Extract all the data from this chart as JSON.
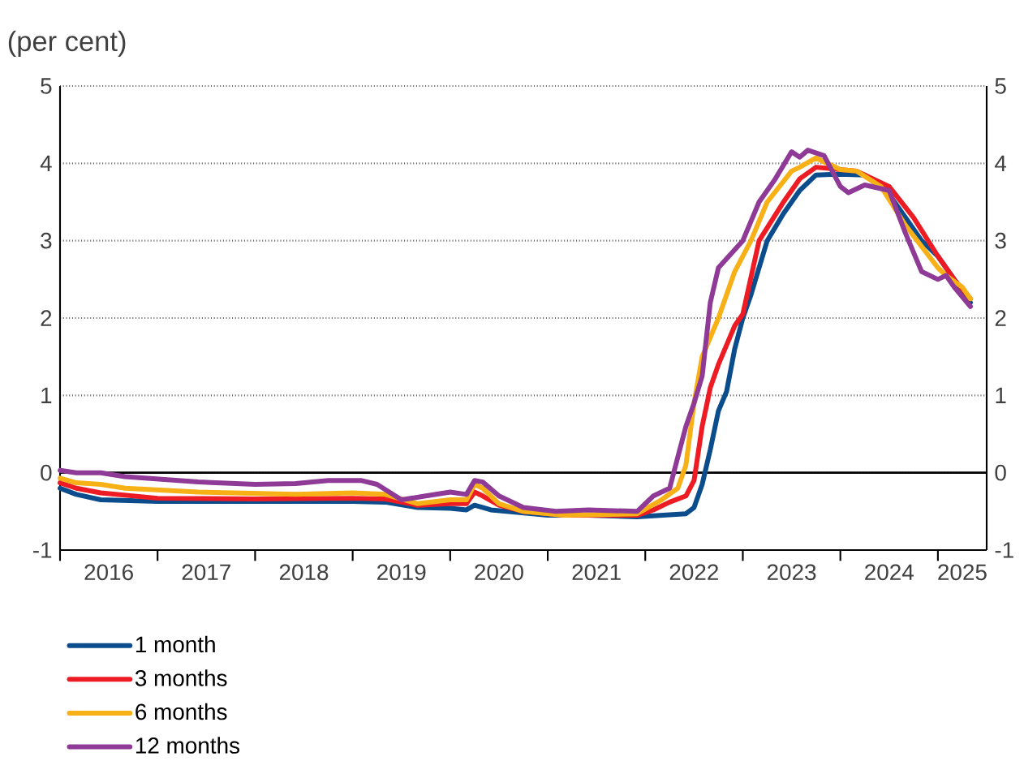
{
  "chart_data": {
    "type": "line",
    "ylabel": "(per cent)",
    "xlim": [
      "2016-01",
      "2025-07"
    ],
    "xticks": [
      {
        "value": "2016-01",
        "label": null
      },
      {
        "value": "2016-07",
        "label": "2016"
      },
      {
        "value": "2017-01",
        "label": null
      },
      {
        "value": "2017-07",
        "label": "2017"
      },
      {
        "value": "2018-01",
        "label": null
      },
      {
        "value": "2018-07",
        "label": "2018"
      },
      {
        "value": "2019-01",
        "label": null
      },
      {
        "value": "2019-07",
        "label": "2019"
      },
      {
        "value": "2020-01",
        "label": null
      },
      {
        "value": "2020-07",
        "label": "2020"
      },
      {
        "value": "2021-01",
        "label": null
      },
      {
        "value": "2021-07",
        "label": "2021"
      },
      {
        "value": "2022-01",
        "label": null
      },
      {
        "value": "2022-07",
        "label": "2022"
      },
      {
        "value": "2023-01",
        "label": null
      },
      {
        "value": "2023-07",
        "label": "2023"
      },
      {
        "value": "2024-01",
        "label": null
      },
      {
        "value": "2024-07",
        "label": "2024"
      },
      {
        "value": "2025-01",
        "label": null
      },
      {
        "value": "2025-04",
        "label": "2025"
      }
    ],
    "ylim": [
      -1,
      5
    ],
    "yticks": [
      -1,
      0,
      1,
      2,
      3,
      4,
      5
    ],
    "y2lim": [
      -1,
      5
    ],
    "y2ticks": [
      -1,
      0,
      1,
      2,
      3,
      4,
      5
    ],
    "grid": "y",
    "legend": "bottom left",
    "marker": "none",
    "line_style": "solid",
    "ref_lines": [
      {
        "axis": "y",
        "value": 0,
        "color": "#000000"
      }
    ],
    "series": [
      {
        "name": "1 month",
        "color": "#0b4c8c",
        "x": [
          "2016-01",
          "2016-03",
          "2016-06",
          "2017-01",
          "2018-01",
          "2019-01",
          "2019-05",
          "2019-09",
          "2020-01",
          "2020-03",
          "2020-04",
          "2020-06",
          "2020-09",
          "2021-01",
          "2021-06",
          "2021-12",
          "2022-03",
          "2022-06",
          "2022-07",
          "2022-08",
          "2022-09",
          "2022-10",
          "2022-11",
          "2022-12",
          "2023-01",
          "2023-02",
          "2023-04",
          "2023-06",
          "2023-08",
          "2023-10",
          "2024-01",
          "2024-04",
          "2024-07",
          "2024-09",
          "2024-11",
          "2025-01",
          "2025-03",
          "2025-05"
        ],
        "values": [
          -0.2,
          -0.28,
          -0.35,
          -0.37,
          -0.37,
          -0.37,
          -0.38,
          -0.45,
          -0.46,
          -0.48,
          -0.42,
          -0.48,
          -0.51,
          -0.55,
          -0.55,
          -0.57,
          -0.55,
          -0.53,
          -0.45,
          -0.15,
          0.3,
          0.8,
          1.05,
          1.6,
          2.0,
          2.3,
          3.0,
          3.35,
          3.65,
          3.85,
          3.86,
          3.85,
          3.6,
          3.3,
          3.0,
          2.8,
          2.5,
          2.2
        ]
      },
      {
        "name": "3 months",
        "color": "#ed1c24",
        "x": [
          "2016-01",
          "2016-03",
          "2016-06",
          "2017-01",
          "2018-01",
          "2019-01",
          "2019-05",
          "2019-09",
          "2020-01",
          "2020-03",
          "2020-04",
          "2020-05",
          "2020-07",
          "2020-10",
          "2021-03",
          "2021-12",
          "2022-02",
          "2022-04",
          "2022-06",
          "2022-07",
          "2022-08",
          "2022-09",
          "2022-10",
          "2022-12",
          "2023-01",
          "2023-03",
          "2023-06",
          "2023-08",
          "2023-10",
          "2024-01",
          "2024-03",
          "2024-07",
          "2024-10",
          "2025-01",
          "2025-03",
          "2025-05"
        ],
        "values": [
          -0.13,
          -0.2,
          -0.26,
          -0.33,
          -0.34,
          -0.33,
          -0.34,
          -0.42,
          -0.4,
          -0.4,
          -0.25,
          -0.3,
          -0.42,
          -0.5,
          -0.55,
          -0.55,
          -0.48,
          -0.38,
          -0.3,
          -0.1,
          0.6,
          1.1,
          1.4,
          1.9,
          2.05,
          3.0,
          3.5,
          3.8,
          3.95,
          3.92,
          3.9,
          3.7,
          3.3,
          2.8,
          2.5,
          2.25
        ]
      },
      {
        "name": "6 months",
        "color": "#f7b116",
        "x": [
          "2016-01",
          "2016-03",
          "2016-06",
          "2016-09",
          "2017-06",
          "2018-06",
          "2019-01",
          "2019-05",
          "2019-09",
          "2020-01",
          "2020-03",
          "2020-04",
          "2020-05",
          "2020-07",
          "2020-10",
          "2021-03",
          "2021-12",
          "2022-03",
          "2022-05",
          "2022-06",
          "2022-07",
          "2022-08",
          "2022-10",
          "2022-12",
          "2023-02",
          "2023-04",
          "2023-07",
          "2023-08",
          "2023-10",
          "2024-01",
          "2024-03",
          "2024-06",
          "2024-09",
          "2025-01",
          "2025-02",
          "2025-04",
          "2025-05"
        ],
        "values": [
          -0.07,
          -0.13,
          -0.15,
          -0.2,
          -0.25,
          -0.28,
          -0.26,
          -0.28,
          -0.4,
          -0.35,
          -0.35,
          -0.15,
          -0.2,
          -0.4,
          -0.5,
          -0.55,
          -0.53,
          -0.35,
          -0.2,
          0.1,
          0.9,
          1.5,
          2.0,
          2.6,
          3.0,
          3.5,
          3.9,
          3.95,
          4.07,
          3.92,
          3.9,
          3.7,
          3.2,
          2.65,
          2.55,
          2.4,
          2.25
        ]
      },
      {
        "name": "12 months",
        "color": "#8e3a96",
        "x": [
          "2016-01",
          "2016-03",
          "2016-06",
          "2016-09",
          "2017-06",
          "2018-01",
          "2018-06",
          "2018-10",
          "2019-02",
          "2019-04",
          "2019-07",
          "2019-10",
          "2020-01",
          "2020-03",
          "2020-04",
          "2020-05",
          "2020-07",
          "2020-10",
          "2021-02",
          "2021-06",
          "2021-12",
          "2022-02",
          "2022-04",
          "2022-05",
          "2022-06",
          "2022-07",
          "2022-08",
          "2022-09",
          "2022-10",
          "2023-01",
          "2023-03",
          "2023-05",
          "2023-07",
          "2023-08",
          "2023-09",
          "2023-11",
          "2024-01",
          "2024-02",
          "2024-04",
          "2024-07",
          "2024-09",
          "2024-11",
          "2025-01",
          "2025-02",
          "2025-03",
          "2025-05"
        ],
        "values": [
          0.03,
          0.0,
          0.0,
          -0.05,
          -0.12,
          -0.15,
          -0.14,
          -0.1,
          -0.1,
          -0.15,
          -0.35,
          -0.3,
          -0.25,
          -0.28,
          -0.1,
          -0.12,
          -0.3,
          -0.45,
          -0.5,
          -0.48,
          -0.5,
          -0.3,
          -0.2,
          0.2,
          0.6,
          0.9,
          1.25,
          2.2,
          2.65,
          3.0,
          3.5,
          3.8,
          4.15,
          4.08,
          4.17,
          4.1,
          3.7,
          3.62,
          3.72,
          3.65,
          3.1,
          2.6,
          2.5,
          2.55,
          2.4,
          2.15
        ]
      }
    ]
  }
}
